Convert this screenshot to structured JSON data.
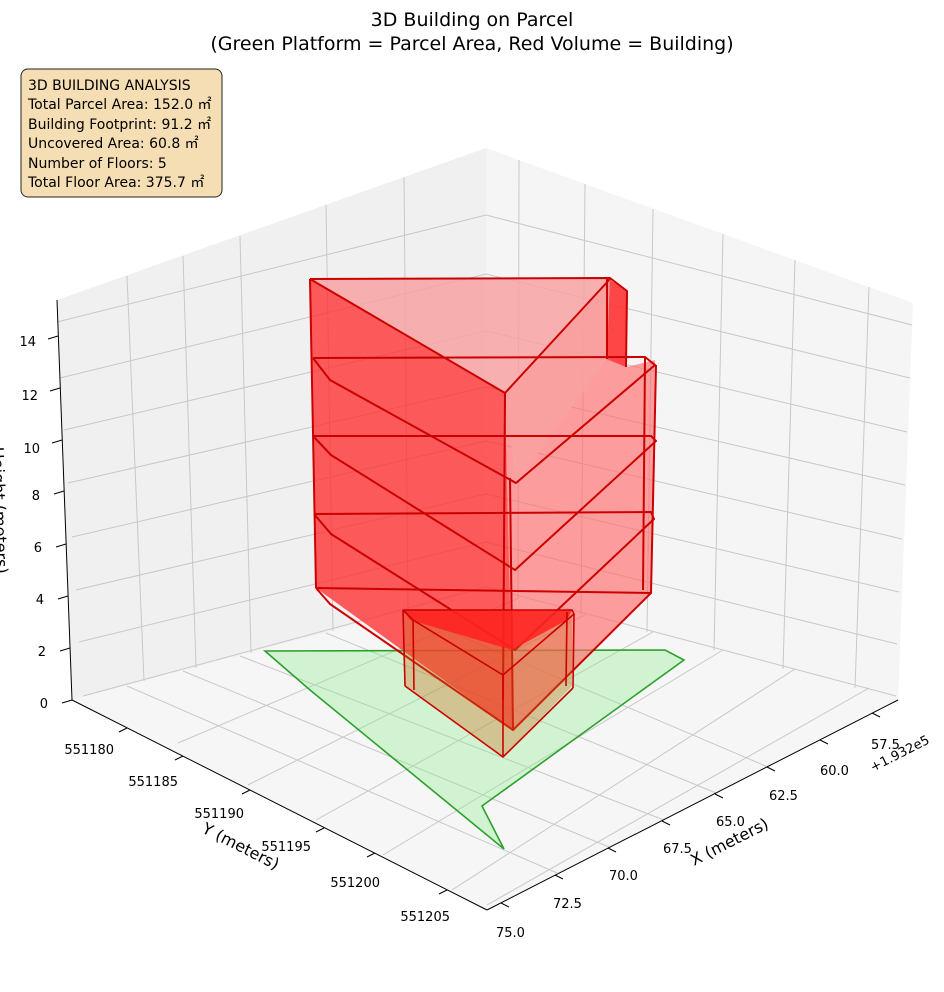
{
  "chart_data": {
    "type": "3d-polygons",
    "title": "3D Building on Parcel",
    "subtitle": "(Green Platform = Parcel Area, Red Volume = Building)",
    "xlabel": "X (meters)",
    "ylabel": "Y (meters)",
    "zlabel": "Height (meters)",
    "x_offset_label": "+1.932e5",
    "x_ticks": [
      "57.5",
      "60.0",
      "62.5",
      "65.0",
      "67.5",
      "70.0",
      "72.5",
      "75.0"
    ],
    "y_ticks": [
      "551180",
      "551185",
      "551190",
      "551195",
      "551200",
      "551205"
    ],
    "z_ticks": [
      "0",
      "2",
      "4",
      "6",
      "8",
      "10",
      "12",
      "14"
    ],
    "parcel_color": "#2ca02c",
    "parcel_fill": "#90ee90",
    "building_color": "#ff0000",
    "edge_color": "#cc0000",
    "info_box": {
      "heading": "3D BUILDING ANALYSIS",
      "lines": [
        "Total Parcel Area: 152.0 ㎡",
        "Building Footprint: 91.2 ㎡",
        "Uncovered Area: 60.8 ㎡",
        "Number of Floors: 5",
        "Total Floor Area: 375.7 ㎡"
      ],
      "fill": "#f5deb3"
    },
    "parcel_area": 152.0,
    "building_footprint": 91.2,
    "uncovered_area": 60.8,
    "floors": 5,
    "total_floor_area": 375.7,
    "floor_height": 3.0,
    "z_range": [
      0,
      15
    ]
  }
}
